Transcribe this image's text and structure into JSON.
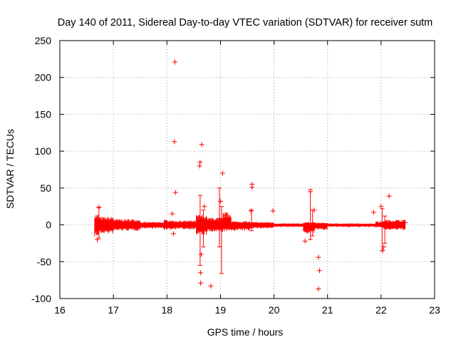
{
  "chart_data": {
    "type": "scatter",
    "title": "Day 140 of 2011, Sidereal Day-to-day VTEC variation (SDTVAR) for receiver sutm",
    "xlabel": "GPS time / hours",
    "ylabel": "SDTVAR / TECUs",
    "xlim": [
      16,
      23
    ],
    "ylim": [
      -100,
      250
    ],
    "xticks": [
      16,
      17,
      18,
      19,
      20,
      21,
      22,
      23
    ],
    "yticks": [
      -100,
      -50,
      0,
      50,
      100,
      150,
      200,
      250
    ],
    "grid": true,
    "marker": "+",
    "series_color": "#ff0000",
    "band_segments": [
      {
        "x": [
          16.65,
          16.72
        ],
        "low": -16,
        "high": 15
      },
      {
        "x": [
          16.72,
          17.0
        ],
        "low": -12,
        "high": 11
      },
      {
        "x": [
          17.0,
          17.5
        ],
        "low": -8,
        "high": 8
      },
      {
        "x": [
          17.5,
          17.95
        ],
        "low": -5,
        "high": 4
      },
      {
        "x": [
          17.95,
          18.1
        ],
        "low": -7,
        "high": 7
      },
      {
        "x": [
          18.1,
          18.55
        ],
        "low": -6,
        "high": 6
      },
      {
        "x": [
          18.55,
          18.75
        ],
        "low": -14,
        "high": 14
      },
      {
        "x": [
          18.75,
          19.05
        ],
        "low": -10,
        "high": 10
      },
      {
        "x": [
          19.05,
          19.2
        ],
        "low": -9,
        "high": 17
      },
      {
        "x": [
          19.2,
          19.55
        ],
        "low": -8,
        "high": 5
      },
      {
        "x": [
          19.55,
          20.0
        ],
        "low": -5,
        "high": 4
      },
      {
        "x": [
          20.0,
          20.55
        ],
        "low": -3,
        "high": 2
      },
      {
        "x": [
          20.55,
          20.75
        ],
        "low": -12,
        "high": 4
      },
      {
        "x": [
          20.75,
          21.0
        ],
        "low": -7,
        "high": 3
      },
      {
        "x": [
          21.0,
          21.9
        ],
        "low": -3,
        "high": 2
      },
      {
        "x": [
          21.9,
          22.05
        ],
        "low": -4,
        "high": 5
      },
      {
        "x": [
          22.05,
          22.45
        ],
        "low": -7,
        "high": 7
      }
    ],
    "error_bars": [
      {
        "x": 16.73,
        "low": -18,
        "high": 23
      },
      {
        "x": 18.62,
        "low": -55,
        "high": 40
      },
      {
        "x": 18.68,
        "low": -30,
        "high": 20
      },
      {
        "x": 18.98,
        "low": -30,
        "high": 50
      },
      {
        "x": 19.02,
        "low": -66,
        "high": 25
      },
      {
        "x": 19.58,
        "low": -8,
        "high": 20
      },
      {
        "x": 20.68,
        "low": -20,
        "high": 48
      },
      {
        "x": 20.72,
        "low": -15,
        "high": 20
      },
      {
        "x": 22.02,
        "low": -35,
        "high": 22
      },
      {
        "x": 22.07,
        "low": -25,
        "high": 12
      }
    ],
    "points": [
      {
        "x": 16.73,
        "y": 24
      },
      {
        "x": 16.7,
        "y": -20
      },
      {
        "x": 18.15,
        "y": 221
      },
      {
        "x": 18.14,
        "y": 113
      },
      {
        "x": 18.16,
        "y": 44
      },
      {
        "x": 18.1,
        "y": 15
      },
      {
        "x": 18.12,
        "y": -12
      },
      {
        "x": 18.65,
        "y": 109
      },
      {
        "x": 18.62,
        "y": 85
      },
      {
        "x": 18.61,
        "y": 80
      },
      {
        "x": 18.63,
        "y": -65
      },
      {
        "x": 18.63,
        "y": -79
      },
      {
        "x": 18.82,
        "y": -83
      },
      {
        "x": 18.7,
        "y": 25
      },
      {
        "x": 18.64,
        "y": -40
      },
      {
        "x": 19.04,
        "y": 70
      },
      {
        "x": 19.0,
        "y": 32
      },
      {
        "x": 19.1,
        "y": 13
      },
      {
        "x": 19.59,
        "y": 55
      },
      {
        "x": 19.59,
        "y": 51
      },
      {
        "x": 19.57,
        "y": 19
      },
      {
        "x": 19.98,
        "y": 19
      },
      {
        "x": 20.75,
        "y": 20
      },
      {
        "x": 20.68,
        "y": 45
      },
      {
        "x": 20.58,
        "y": -22
      },
      {
        "x": 20.83,
        "y": -44
      },
      {
        "x": 20.85,
        "y": -62
      },
      {
        "x": 20.83,
        "y": -87
      },
      {
        "x": 21.86,
        "y": 17
      },
      {
        "x": 22.0,
        "y": 25
      },
      {
        "x": 22.15,
        "y": 39
      },
      {
        "x": 22.03,
        "y": -35
      },
      {
        "x": 22.05,
        "y": -30
      },
      {
        "x": 22.45,
        "y": 3
      }
    ]
  }
}
